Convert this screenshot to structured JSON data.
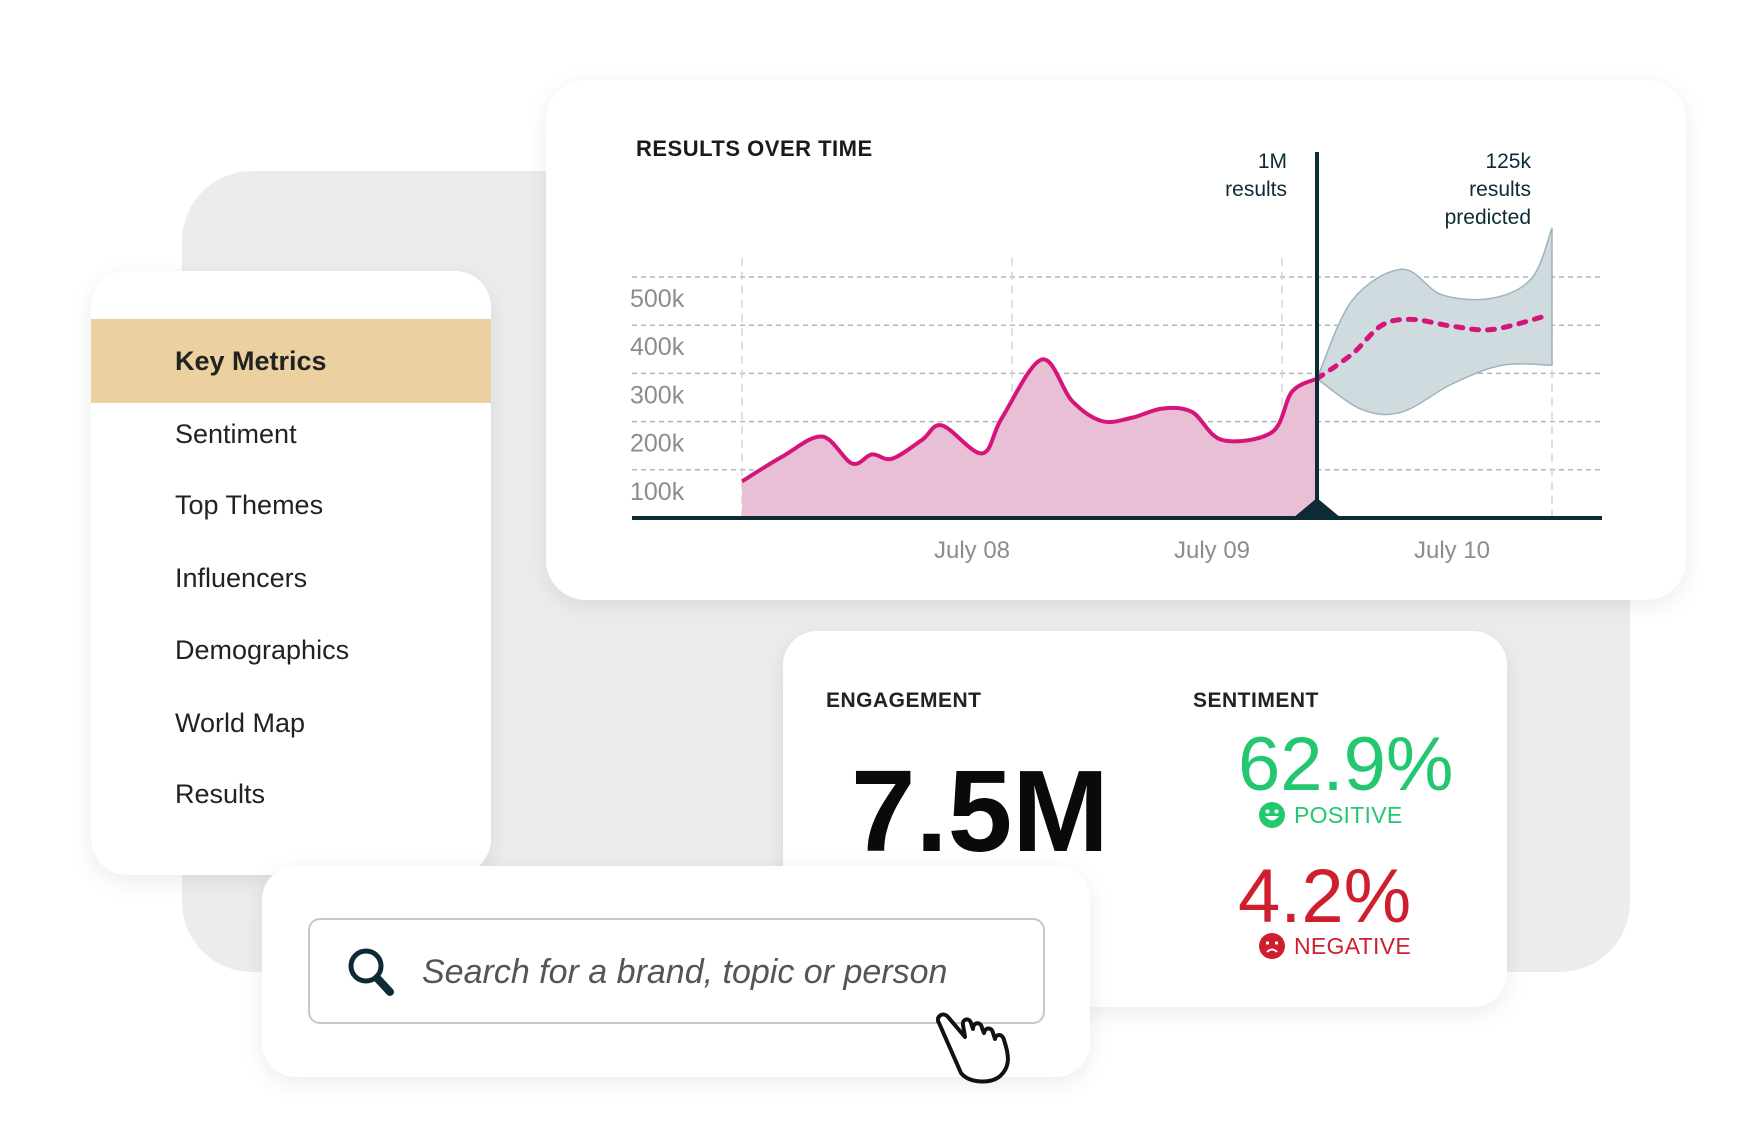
{
  "sidebar": {
    "items": [
      {
        "label": "Key Metrics",
        "active": true
      },
      {
        "label": "Sentiment"
      },
      {
        "label": "Top Themes"
      },
      {
        "label": "Influencers"
      },
      {
        "label": "Demographics"
      },
      {
        "label": "World Map"
      },
      {
        "label": "Results"
      }
    ],
    "active_color": "#ebd0a0"
  },
  "metrics": {
    "engagement_label": "ENGAGEMENT",
    "engagement_value": "7.5M",
    "sentiment_label": "SENTIMENT",
    "positive_value": "62.9%",
    "positive_label": "POSITIVE",
    "positive_icon": "smiley-face-icon",
    "positive_color": "#23c76f",
    "negative_value": "4.2%",
    "negative_label": "NEGATIVE",
    "negative_icon": "sad-face-icon",
    "negative_color": "#cf1f2e"
  },
  "search": {
    "placeholder": "Search for a brand, topic or person",
    "icon": "search-icon",
    "cursor_icon": "hand-pointer-icon"
  },
  "chart_data": {
    "type": "area",
    "title": "RESULTS OVER TIME",
    "x_tick_labels": [
      {
        "x": "2023-07-08T00:00",
        "label": "July 08"
      },
      {
        "x": "2023-07-09T00:00",
        "label": "July 09"
      },
      {
        "x": "2023-07-10T00:00",
        "label": "July 10"
      }
    ],
    "y_ticks": [
      100000,
      200000,
      300000,
      400000,
      500000
    ],
    "y_tick_labels": [
      "100k",
      "200k",
      "300k",
      "400k",
      "500k"
    ],
    "ylim": [
      0,
      600000
    ],
    "xlim": [
      "2023-07-06T14:00",
      "2023-07-10T15:00"
    ],
    "grid": true,
    "colors": {
      "actual_line": "#d6157a",
      "actual_fill": "#e9bfd5",
      "band": "#cfdbde",
      "band_edge": "#9fb4bb",
      "marker": "#0d2b36"
    },
    "actual": [
      [
        "2023-07-07T01:00",
        76000
      ],
      [
        "2023-07-07T05:00",
        127000
      ],
      [
        "2023-07-07T09:00",
        169000
      ],
      [
        "2023-07-07T12:00",
        113000
      ],
      [
        "2023-07-07T14:00",
        132000
      ],
      [
        "2023-07-07T16:00",
        123000
      ],
      [
        "2023-07-07T19:00",
        162000
      ],
      [
        "2023-07-07T21:00",
        192000
      ],
      [
        "2023-07-08T01:00",
        134000
      ],
      [
        "2023-07-08T03:00",
        208000
      ],
      [
        "2023-07-08T07:00",
        329000
      ],
      [
        "2023-07-08T10:00",
        243000
      ],
      [
        "2023-07-08T13:00",
        201000
      ],
      [
        "2023-07-08T16:00",
        208000
      ],
      [
        "2023-07-08T19:00",
        227000
      ],
      [
        "2023-07-08T22:00",
        220000
      ],
      [
        "2023-07-09T01:00",
        162000
      ],
      [
        "2023-07-09T06:00",
        178000
      ],
      [
        "2023-07-09T08:00",
        262000
      ],
      [
        "2023-07-09T10:30",
        289000
      ]
    ],
    "forecast": [
      [
        "2023-07-09T10:30",
        289000
      ],
      [
        "2023-07-09T14:00",
        340000
      ],
      [
        "2023-07-09T17:00",
        400000
      ],
      [
        "2023-07-09T20:00",
        412000
      ],
      [
        "2023-07-10T00:00",
        398000
      ],
      [
        "2023-07-10T04:00",
        391000
      ],
      [
        "2023-07-10T09:00",
        417000
      ]
    ],
    "forecast_upper": [
      [
        "2023-07-09T10:30",
        289000
      ],
      [
        "2023-07-09T14:00",
        451000
      ],
      [
        "2023-07-09T19:00",
        516000
      ],
      [
        "2023-07-09T23:00",
        463000
      ],
      [
        "2023-07-10T04:00",
        456000
      ],
      [
        "2023-07-10T08:00",
        498000
      ],
      [
        "2023-07-10T10:00",
        602000
      ]
    ],
    "forecast_lower": [
      [
        "2023-07-09T10:30",
        289000
      ],
      [
        "2023-07-09T15:00",
        225000
      ],
      [
        "2023-07-09T19:00",
        220000
      ],
      [
        "2023-07-10T00:00",
        278000
      ],
      [
        "2023-07-10T05:00",
        317000
      ],
      [
        "2023-07-10T10:00",
        317000
      ]
    ],
    "now_marker": {
      "x": "2023-07-09T10:30",
      "annotation": [
        "1M",
        "results"
      ]
    },
    "forecast_annotation": [
      "125k",
      "results",
      "predicted"
    ]
  }
}
